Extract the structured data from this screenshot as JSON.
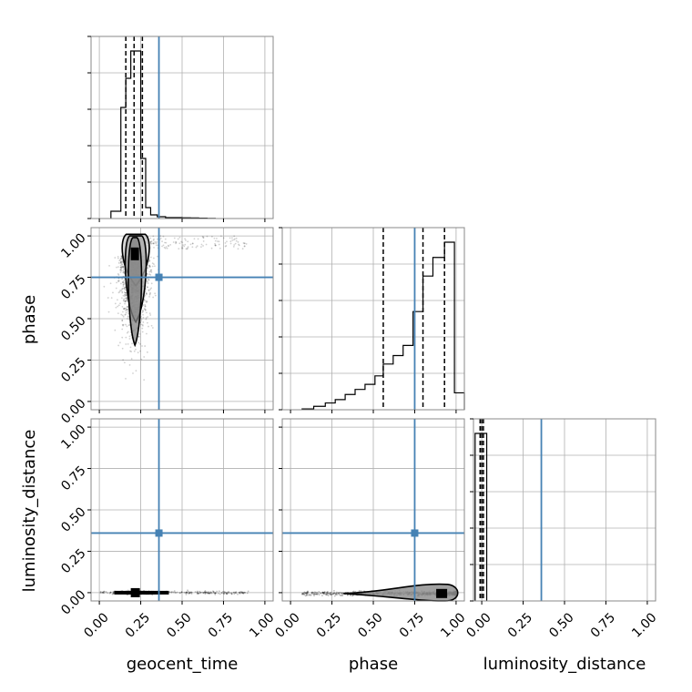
{
  "chart_data": {
    "type": "corner",
    "parameters": [
      "geocent_time",
      "phase",
      "luminosity_distance"
    ],
    "range": [
      -0.05,
      1.05
    ],
    "ticks": [
      0.0,
      0.25,
      0.5,
      0.75,
      1.0
    ],
    "tick_labels": [
      "0.00",
      "0.25",
      "0.50",
      "0.75",
      "1.00"
    ],
    "grid": true,
    "truths": {
      "geocent_time": 0.36,
      "phase": 0.75,
      "luminosity_distance": 0.36
    },
    "truth_color": "#4682b4",
    "histograms": {
      "geocent_time": {
        "bin_edges": [
          0.07,
          0.13,
          0.16,
          0.19,
          0.22,
          0.25,
          0.28,
          0.31,
          0.35,
          0.4,
          0.45,
          0.5,
          0.55,
          0.6,
          0.65,
          0.7
        ],
        "counts": [
          0.04,
          0.61,
          0.77,
          0.92,
          0.92,
          0.33,
          0.06,
          0.02,
          0.01,
          0.005,
          0.005,
          0.004,
          0.003,
          0.002,
          0.001
        ],
        "quantiles": [
          0.16,
          0.21,
          0.26
        ]
      },
      "phase": {
        "bin_edges": [
          0.07,
          0.14,
          0.21,
          0.27,
          0.33,
          0.39,
          0.45,
          0.51,
          0.56,
          0.62,
          0.68,
          0.74,
          0.8,
          0.86,
          0.93,
          0.99,
          1.05
        ],
        "counts": [
          0.005,
          0.02,
          0.04,
          0.06,
          0.09,
          0.12,
          0.15,
          0.2,
          0.27,
          0.32,
          0.38,
          0.58,
          0.79,
          0.9,
          0.99,
          0.1
        ],
        "quantiles": [
          0.56,
          0.8,
          0.93
        ]
      },
      "luminosity_distance": {
        "bin_edges": [
          -0.04,
          0.0,
          0.03
        ],
        "counts": [
          1.0,
          1.0
        ],
        "quantiles": [
          -0.01,
          0.0,
          0.01
        ]
      }
    },
    "scatter_2d": {
      "phase_vs_geocent_time": {
        "center": [
          0.21,
          0.88
        ],
        "spread": [
          0.045,
          0.22
        ],
        "tail": {
          "x": [
            0.28,
            0.9
          ],
          "y": [
            0.92,
            1.0
          ]
        },
        "contours": [
          {
            "x0": 0.13,
            "x1": 0.31,
            "ylo": 0.7,
            "yhi": 1.01,
            "fill": "#c8c8c8"
          },
          {
            "x0": 0.15,
            "x1": 0.29,
            "ylo": 0.48,
            "yhi": 1.0,
            "fill": "#a8a8a8"
          },
          {
            "x0": 0.17,
            "x1": 0.26,
            "ylo": 0.34,
            "yhi": 0.99,
            "fill": "#808080"
          }
        ]
      },
      "luminosity_distance_vs_geocent_time": {
        "center": [
          0.23,
          0.0
        ],
        "x_extent": [
          0.0,
          0.9
        ],
        "y_spread": 0.004
      },
      "luminosity_distance_vs_phase": {
        "center": [
          0.92,
          -0.005
        ],
        "x_extent": [
          0.07,
          1.0
        ],
        "y_spread": 0.006
      }
    }
  }
}
